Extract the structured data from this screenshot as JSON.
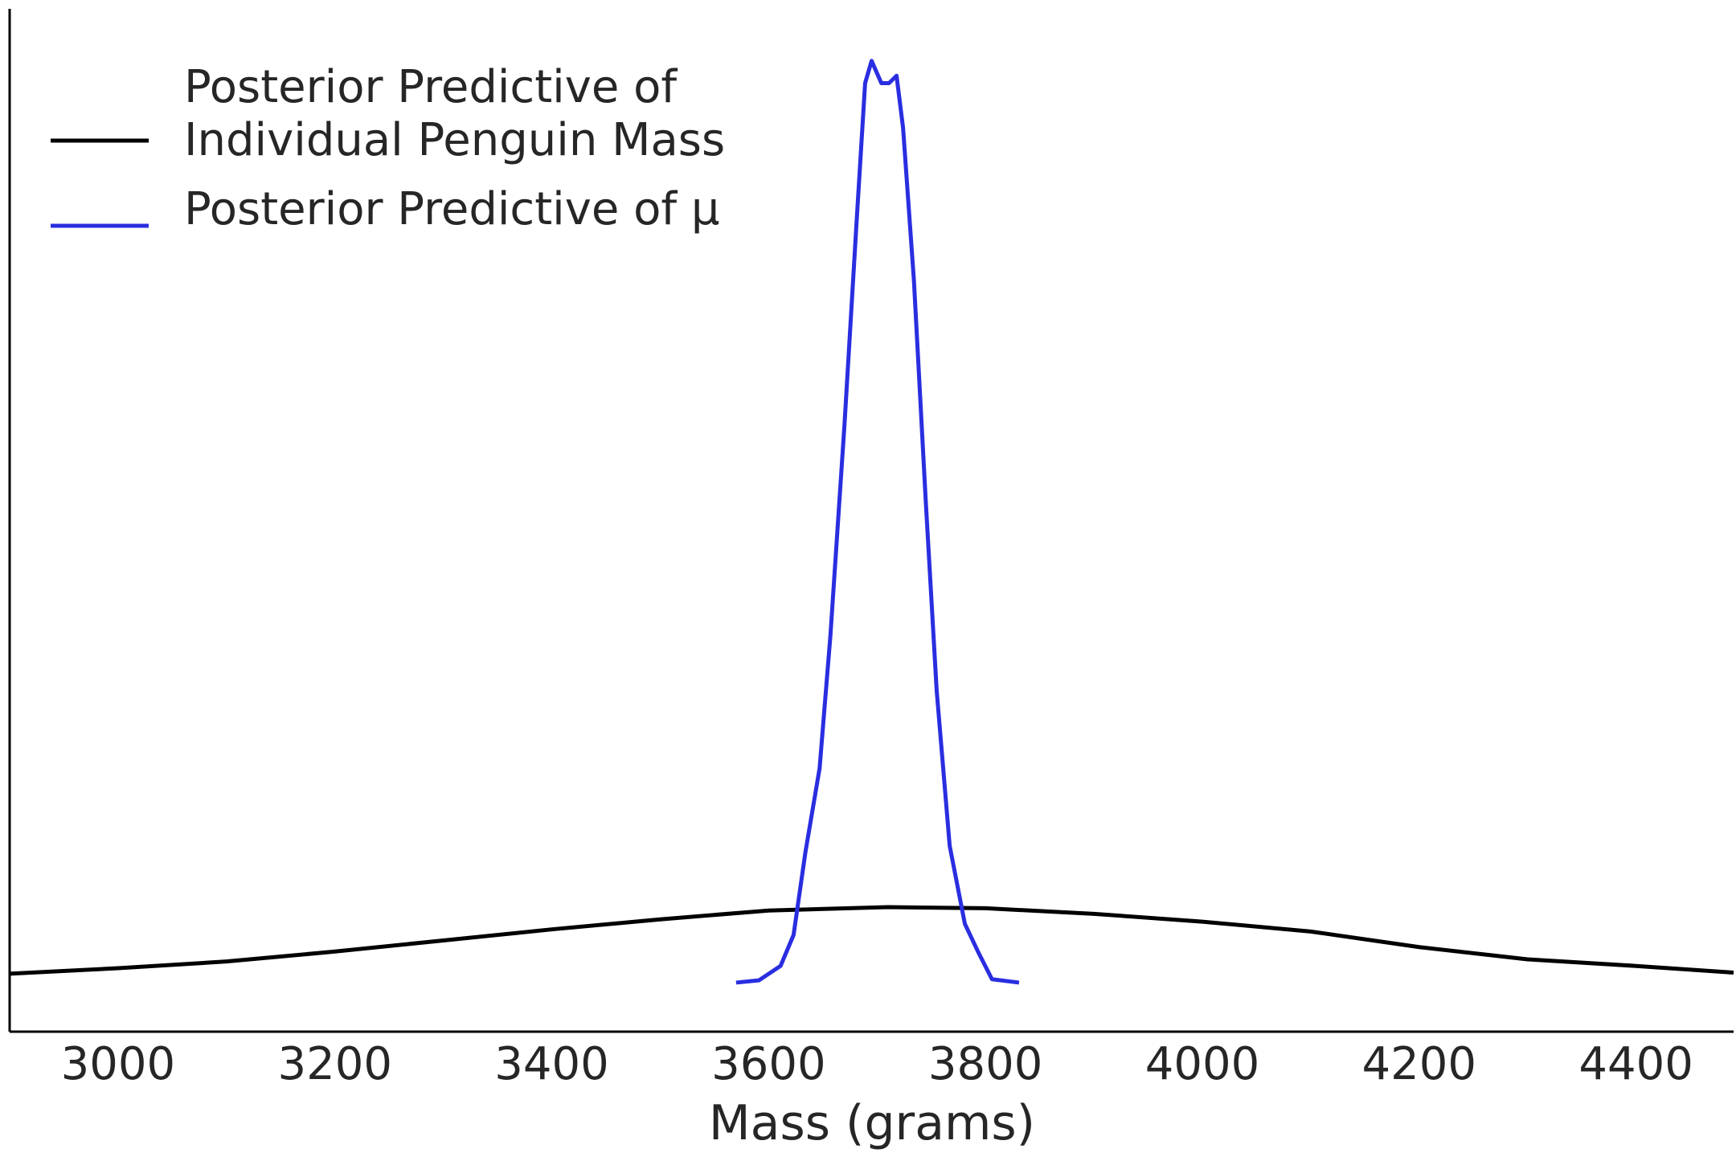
{
  "chart_data": {
    "type": "line",
    "xlabel": "Mass (grams)",
    "xlim": [
      2900,
      4490
    ],
    "xticks": [
      3000,
      3200,
      3400,
      3600,
      3800,
      4000,
      4200,
      4400
    ],
    "ylim": [
      -0.00066,
      0.0131
    ],
    "legend": "upper left",
    "grid": false,
    "series": [
      {
        "name": "Posterior Predictive of\nIndividual Penguin Mass",
        "color": "#000000",
        "x": [
          2900,
          3000,
          3100,
          3200,
          3300,
          3400,
          3500,
          3600,
          3710,
          3800,
          3900,
          4000,
          4100,
          4200,
          4300,
          4400,
          4490
        ],
        "values": [
          0.000119,
          0.000194,
          0.000284,
          0.000418,
          0.000567,
          0.000716,
          0.000851,
          0.00097,
          0.001015,
          0.001,
          0.000925,
          0.00082,
          0.000687,
          0.000478,
          0.000313,
          0.000224,
          0.000134
        ]
      },
      {
        "name": "Posterior Predictive of μ",
        "color": "#2a2ee0",
        "x": [
          3570,
          3591,
          3611,
          3623,
          3634,
          3647,
          3657,
          3670,
          3681,
          3689,
          3695,
          3704,
          3711,
          3718,
          3724,
          3734,
          3745,
          3755,
          3767,
          3781,
          3793,
          3806,
          3831
        ],
        "values": [
          0,
          3e-05,
          0.000224,
          0.00064,
          0.00176,
          0.00288,
          0.00467,
          0.00751,
          0.0102,
          0.0121,
          0.0124,
          0.0121,
          0.0121,
          0.0122,
          0.0115,
          0.00945,
          0.00646,
          0.00393,
          0.00184,
          0.00079,
          0.00042,
          4.5e-05,
          0
        ]
      }
    ]
  }
}
